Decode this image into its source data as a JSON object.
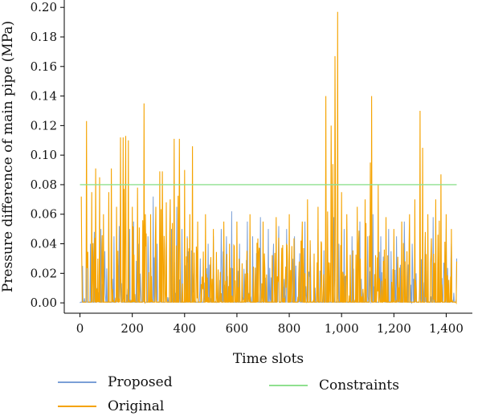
{
  "chart_data": {
    "type": "line",
    "xlabel": "Time slots",
    "ylabel": "Pressure difference of main pipe (MPa)",
    "xlim": [
      -60,
      1500
    ],
    "ylim": [
      -0.007,
      0.205
    ],
    "xticks": [
      0,
      200,
      400,
      600,
      800,
      1000,
      1200,
      1400
    ],
    "xtick_labels": [
      "0",
      "200",
      "400",
      "600",
      "800",
      "1,000",
      "1,200",
      "1,400"
    ],
    "yticks": [
      0.0,
      0.02,
      0.04,
      0.06,
      0.08,
      0.1,
      0.12,
      0.14,
      0.16,
      0.18,
      0.2
    ],
    "ytick_labels": [
      "0.00",
      "0.02",
      "0.04",
      "0.06",
      "0.08",
      "0.10",
      "0.12",
      "0.14",
      "0.16",
      "0.18",
      "0.20"
    ],
    "grid": false,
    "legend_position": "bottom",
    "series": [
      {
        "name": "Proposed",
        "color": "#7a9fd6",
        "x": [
          0,
          10,
          25,
          40,
          55,
          65,
          80,
          95,
          110,
          130,
          150,
          170,
          190,
          205,
          225,
          245,
          260,
          280,
          295,
          310,
          330,
          350,
          370,
          390,
          410,
          430,
          460,
          490,
          510,
          540,
          560,
          580,
          610,
          640,
          660,
          690,
          720,
          740,
          760,
          790,
          820,
          860,
          880,
          910,
          940,
          970,
          990,
          1010,
          1040,
          1070,
          1100,
          1120,
          1150,
          1180,
          1210,
          1240,
          1270,
          1300,
          1320,
          1350,
          1380,
          1400,
          1420,
          1440
        ],
        "values": [
          0.0,
          0.025,
          0.055,
          0.04,
          0.048,
          0.01,
          0.05,
          0.035,
          0.05,
          0.045,
          0.052,
          0.03,
          0.05,
          0.055,
          0.04,
          0.05,
          0.045,
          0.072,
          0.04,
          0.052,
          0.045,
          0.05,
          0.065,
          0.05,
          0.045,
          0.055,
          0.03,
          0.04,
          0.045,
          0.05,
          0.045,
          0.062,
          0.04,
          0.055,
          0.045,
          0.058,
          0.05,
          0.04,
          0.052,
          0.05,
          0.045,
          0.055,
          0.04,
          0.05,
          0.045,
          0.058,
          0.04,
          0.05,
          0.045,
          0.055,
          0.045,
          0.06,
          0.045,
          0.05,
          0.045,
          0.055,
          0.04,
          0.05,
          0.045,
          0.058,
          0.042,
          0.05,
          0.04,
          0.03
        ]
      },
      {
        "name": "Original",
        "color": "#f5a300",
        "x": [
          5,
          25,
          45,
          60,
          75,
          90,
          110,
          120,
          140,
          155,
          165,
          175,
          185,
          200,
          220,
          245,
          250,
          270,
          290,
          305,
          315,
          330,
          345,
          360,
          380,
          400,
          420,
          430,
          450,
          480,
          510,
          550,
          600,
          650,
          700,
          750,
          800,
          850,
          870,
          910,
          940,
          960,
          975,
          985,
          1000,
          1020,
          1060,
          1090,
          1110,
          1115,
          1140,
          1170,
          1200,
          1230,
          1260,
          1280,
          1300,
          1310,
          1330,
          1360,
          1380,
          1400,
          1420,
          1440
        ],
        "values": [
          0.072,
          0.123,
          0.075,
          0.091,
          0.085,
          0.06,
          0.075,
          0.091,
          0.065,
          0.112,
          0.112,
          0.113,
          0.11,
          0.065,
          0.078,
          0.135,
          0.06,
          0.06,
          0.065,
          0.089,
          0.089,
          0.068,
          0.07,
          0.111,
          0.111,
          0.09,
          0.06,
          0.106,
          0.055,
          0.06,
          0.05,
          0.055,
          0.055,
          0.06,
          0.055,
          0.058,
          0.06,
          0.055,
          0.07,
          0.065,
          0.14,
          0.12,
          0.167,
          0.197,
          0.075,
          0.06,
          0.065,
          0.07,
          0.095,
          0.14,
          0.08,
          0.058,
          0.05,
          0.055,
          0.06,
          0.07,
          0.13,
          0.105,
          0.06,
          0.07,
          0.087,
          0.06,
          0.05,
          0.028
        ]
      },
      {
        "name": "Constraints",
        "color": "#8fe08f",
        "x": [
          0,
          1440
        ],
        "values": [
          0.08,
          0.08
        ]
      }
    ]
  }
}
